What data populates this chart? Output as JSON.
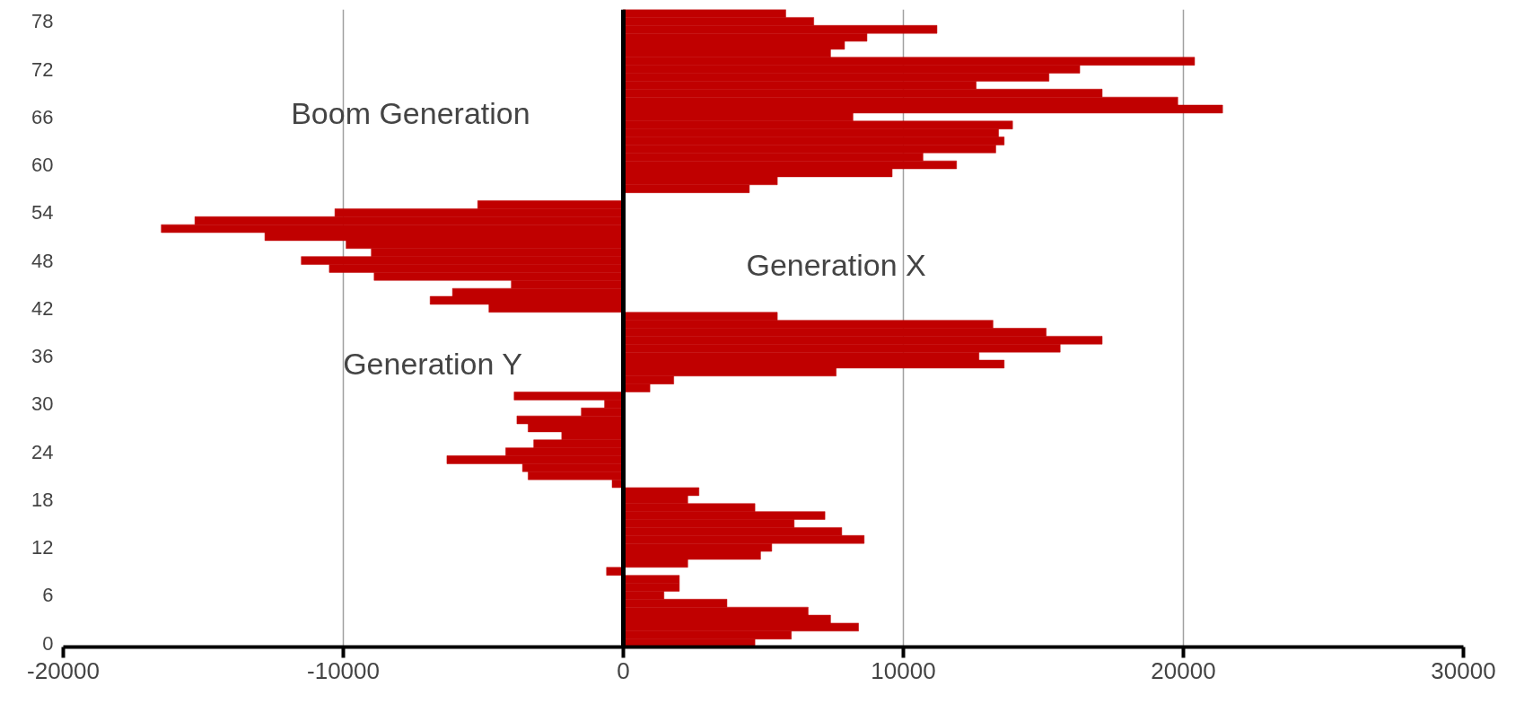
{
  "chart_data": {
    "type": "bar",
    "orientation": "horizontal",
    "categories": [
      null,
      "78",
      null,
      null,
      null,
      null,
      null,
      "72",
      null,
      null,
      null,
      null,
      null,
      "66",
      null,
      null,
      null,
      null,
      null,
      "60",
      null,
      null,
      null,
      null,
      null,
      "54",
      null,
      null,
      null,
      null,
      null,
      "48",
      null,
      null,
      null,
      null,
      null,
      "42",
      null,
      null,
      null,
      null,
      null,
      "36",
      null,
      null,
      null,
      null,
      null,
      "30",
      null,
      null,
      null,
      null,
      null,
      "24",
      null,
      null,
      null,
      null,
      null,
      "18",
      null,
      null,
      null,
      null,
      null,
      "12",
      null,
      null,
      null,
      null,
      null,
      "6",
      null,
      null,
      null,
      null,
      null,
      "0"
    ],
    "values": [
      5800,
      6800,
      11200,
      8700,
      7900,
      7400,
      20400,
      16300,
      15200,
      12600,
      17100,
      19800,
      21400,
      8200,
      13900,
      13400,
      13600,
      13300,
      10700,
      11900,
      9600,
      5500,
      4500,
      null,
      -5200,
      -10300,
      -15300,
      -16500,
      -12800,
      -9900,
      -9000,
      -11500,
      -10500,
      -8900,
      -4000,
      -6100,
      -6900,
      -4800,
      5500,
      13200,
      15100,
      17100,
      15600,
      12700,
      13600,
      7600,
      1800,
      950,
      -3900,
      -670,
      -1500,
      -3800,
      -3400,
      -2200,
      -3200,
      -4200,
      -6300,
      -3600,
      -3400,
      -400,
      2700,
      2300,
      4700,
      7200,
      6100,
      7800,
      8600,
      5300,
      4900,
      2300,
      -600,
      2000,
      2000,
      1450,
      3700,
      6600,
      7400,
      8400,
      6000,
      4700
    ],
    "color": "#c00000",
    "xlim": [
      -20000,
      30000
    ],
    "xticks": [
      -20000,
      -10000,
      0,
      10000,
      20000,
      30000
    ],
    "grid": "x",
    "annotations": [
      "Boom Generation",
      "Generation X",
      "Generation Y"
    ]
  }
}
